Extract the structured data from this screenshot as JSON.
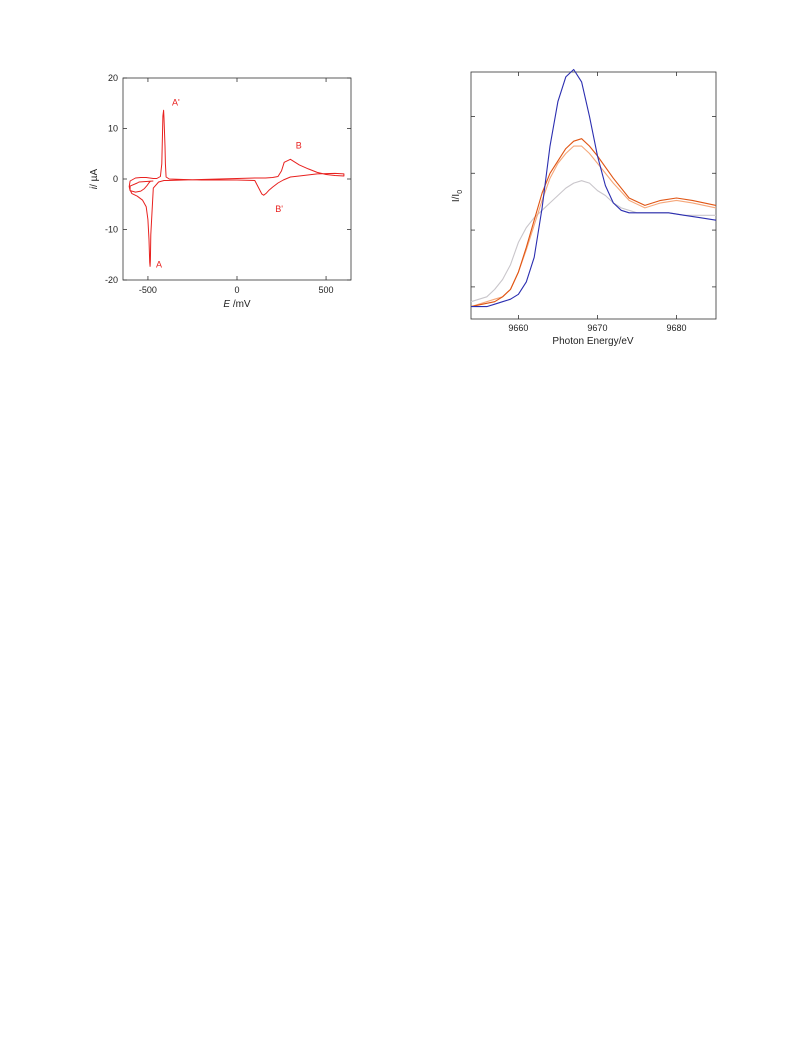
{
  "chart_data": [
    {
      "type": "line",
      "xlabel": {
        "italic": "E",
        "unit": " /mV"
      },
      "ylabel": {
        "italic": "i",
        "unit": "/ µA"
      },
      "xlim": [
        -640,
        640
      ],
      "ylim": [
        -20,
        20
      ],
      "x_ticks": [
        -500,
        0,
        500
      ],
      "x_tick_labels": [
        "-500",
        "0",
        "500"
      ],
      "y_ticks": [
        20,
        10,
        0,
        -10,
        -20
      ],
      "y_tick_labels": [
        "20",
        "10",
        "0",
        "-10",
        "-20"
      ],
      "grid": false,
      "color": "#e8211f",
      "series": [
        {
          "x": [
            -470,
            -550,
            -560,
            -600,
            -600,
            -590,
            -560,
            -530,
            -510,
            -500,
            -494,
            -490,
            -488,
            -486,
            -484,
            -470,
            -440,
            -420,
            -410,
            -400,
            -390,
            -300,
            -200,
            -100,
            0,
            100,
            160,
            200,
            230,
            250,
            265,
            300,
            350,
            400,
            450,
            500,
            550,
            600,
            600,
            550,
            450,
            350,
            300,
            260,
            230,
            200,
            180,
            165,
            150,
            140,
            100,
            0,
            -100,
            -200,
            -300,
            -380,
            -398,
            -402,
            -404,
            -410,
            -412,
            -416,
            -422,
            -430,
            -450,
            -470,
            -490,
            -510,
            -540,
            -570,
            -600,
            -605,
            -600,
            -570,
            -540,
            -520,
            -505,
            -495,
            -490,
            -484
          ],
          "y": [
            -0.4,
            -0.6,
            -0.8,
            -1.4,
            -2.2,
            -2.9,
            -3.4,
            -4.2,
            -5.5,
            -8.0,
            -12.0,
            -16.5,
            -17.3,
            -16.0,
            -11.0,
            -1.8,
            -0.6,
            -0.4,
            -0.3,
            -0.3,
            -0.3,
            -0.2,
            -0.1,
            0.0,
            0.1,
            0.2,
            0.2,
            0.3,
            0.5,
            1.6,
            3.3,
            3.9,
            2.8,
            2.0,
            1.3,
            0.9,
            0.7,
            0.6,
            1.0,
            1.1,
            1.0,
            0.6,
            0.4,
            -0.2,
            -0.8,
            -1.6,
            -2.2,
            -2.8,
            -3.2,
            -3.0,
            -0.3,
            -0.2,
            -0.2,
            -0.2,
            -0.1,
            0.0,
            0.4,
            3.0,
            6.5,
            12.0,
            13.6,
            12.5,
            3.0,
            0.5,
            0.1,
            0.1,
            0.2,
            0.3,
            0.3,
            0.2,
            -0.4,
            -1.5,
            -2.3,
            -2.6,
            -2.4,
            -1.9,
            -1.3,
            -0.8,
            -0.6,
            -0.4
          ]
        }
      ],
      "annotations": [
        {
          "text": "A'",
          "x": -365,
          "y": 14.6
        },
        {
          "text": "B",
          "x": 330,
          "y": 6.0
        },
        {
          "text": "B'",
          "x": 215,
          "y": -6.5
        },
        {
          "text": "A",
          "x": -455,
          "y": -17.5
        }
      ]
    },
    {
      "type": "line",
      "xlabel": "Photon Energy/eV",
      "ylabel": {
        "main": "I/I",
        "sub": "0"
      },
      "xlim": [
        9654,
        9685
      ],
      "ylim": [
        0.0,
        1.0
      ],
      "x_ticks": [
        9660,
        9670,
        9680
      ],
      "x_tick_labels": [
        "9660",
        "9670",
        "9680"
      ],
      "y_ticks": [
        0.13,
        0.36,
        0.59,
        0.82
      ],
      "y_tick_labels": [],
      "grid": false,
      "series": [
        {
          "color": "#c9c6cb",
          "x": [
            9654,
            9656,
            9657,
            9658,
            9659,
            9660,
            9661,
            9662,
            9663,
            9664,
            9665,
            9666,
            9667,
            9668,
            9669,
            9670,
            9671,
            9672,
            9673,
            9675,
            9677,
            9679,
            9681,
            9683,
            9685
          ],
          "y": [
            0.07,
            0.09,
            0.12,
            0.16,
            0.22,
            0.31,
            0.37,
            0.41,
            0.44,
            0.47,
            0.5,
            0.53,
            0.55,
            0.56,
            0.55,
            0.52,
            0.5,
            0.47,
            0.45,
            0.43,
            0.43,
            0.43,
            0.42,
            0.42,
            0.42
          ]
        },
        {
          "color": "#f5a77a",
          "x": [
            9654,
            9657,
            9658,
            9659,
            9660,
            9661,
            9662,
            9663,
            9664,
            9665,
            9666,
            9667,
            9668,
            9669,
            9670,
            9672,
            9674,
            9676,
            9678,
            9680,
            9682,
            9685
          ],
          "y": [
            0.05,
            0.08,
            0.09,
            0.12,
            0.19,
            0.28,
            0.38,
            0.48,
            0.57,
            0.63,
            0.67,
            0.7,
            0.7,
            0.67,
            0.63,
            0.55,
            0.48,
            0.45,
            0.47,
            0.48,
            0.47,
            0.45
          ]
        },
        {
          "color": "#e05514",
          "x": [
            9654,
            9657,
            9658,
            9659,
            9660,
            9661,
            9662,
            9663,
            9664,
            9665,
            9666,
            9667,
            9668,
            9669,
            9670,
            9672,
            9674,
            9676,
            9678,
            9680,
            9682,
            9685
          ],
          "y": [
            0.05,
            0.07,
            0.09,
            0.12,
            0.19,
            0.29,
            0.4,
            0.51,
            0.59,
            0.64,
            0.69,
            0.72,
            0.73,
            0.7,
            0.66,
            0.57,
            0.49,
            0.46,
            0.48,
            0.49,
            0.48,
            0.46
          ]
        },
        {
          "color": "#2b2eb0",
          "x": [
            9654,
            9656,
            9657,
            9658,
            9659,
            9660,
            9661,
            9662,
            9663,
            9664,
            9665,
            9666,
            9667,
            9668,
            9669,
            9670,
            9671,
            9672,
            9673,
            9674,
            9675,
            9677,
            9679,
            9681,
            9683,
            9685
          ],
          "y": [
            0.05,
            0.05,
            0.06,
            0.07,
            0.08,
            0.1,
            0.15,
            0.25,
            0.45,
            0.7,
            0.88,
            0.98,
            1.01,
            0.96,
            0.82,
            0.66,
            0.54,
            0.47,
            0.44,
            0.43,
            0.43,
            0.43,
            0.43,
            0.42,
            0.41,
            0.4
          ]
        }
      ]
    }
  ]
}
